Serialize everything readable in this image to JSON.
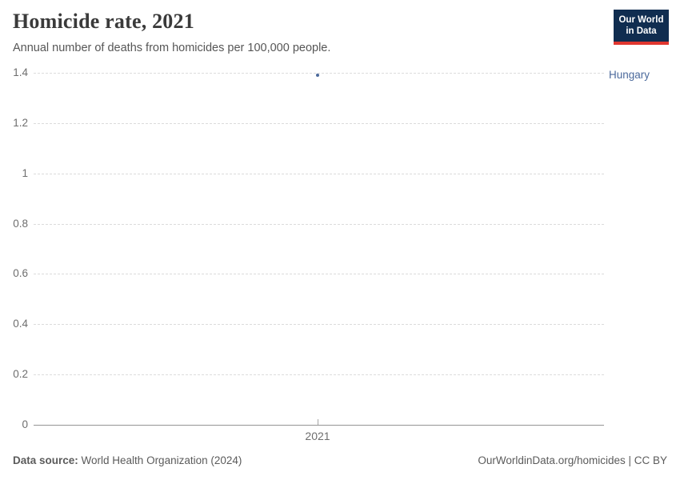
{
  "header": {
    "title": "Homicide rate, 2021",
    "subtitle": "Annual number of deaths from homicides per 100,000 people.",
    "logo": {
      "line1": "Our World",
      "line2": "in Data",
      "bg_color": "#102d50",
      "accent_color": "#e0362f"
    }
  },
  "chart_data": {
    "type": "scatter",
    "title": "Homicide rate, 2021",
    "subtitle": "Annual number of deaths from homicides per 100,000 people.",
    "x": [
      2021
    ],
    "series": [
      {
        "name": "Hungary",
        "values": [
          1.39
        ],
        "color": "#4c6a9c"
      }
    ],
    "xlabel": "",
    "ylabel": "",
    "ylim": [
      0,
      1.4
    ],
    "yticks": [
      0,
      0.2,
      0.4,
      0.6,
      0.8,
      1,
      1.2,
      1.4
    ],
    "xticks": [
      2021
    ],
    "grid": "horizontal-dashed",
    "legend_position": "right-of-point"
  },
  "footer": {
    "datasource_label": "Data source:",
    "datasource_value": " World Health Organization (2024)",
    "credit": "OurWorldinData.org/homicides | CC BY"
  }
}
